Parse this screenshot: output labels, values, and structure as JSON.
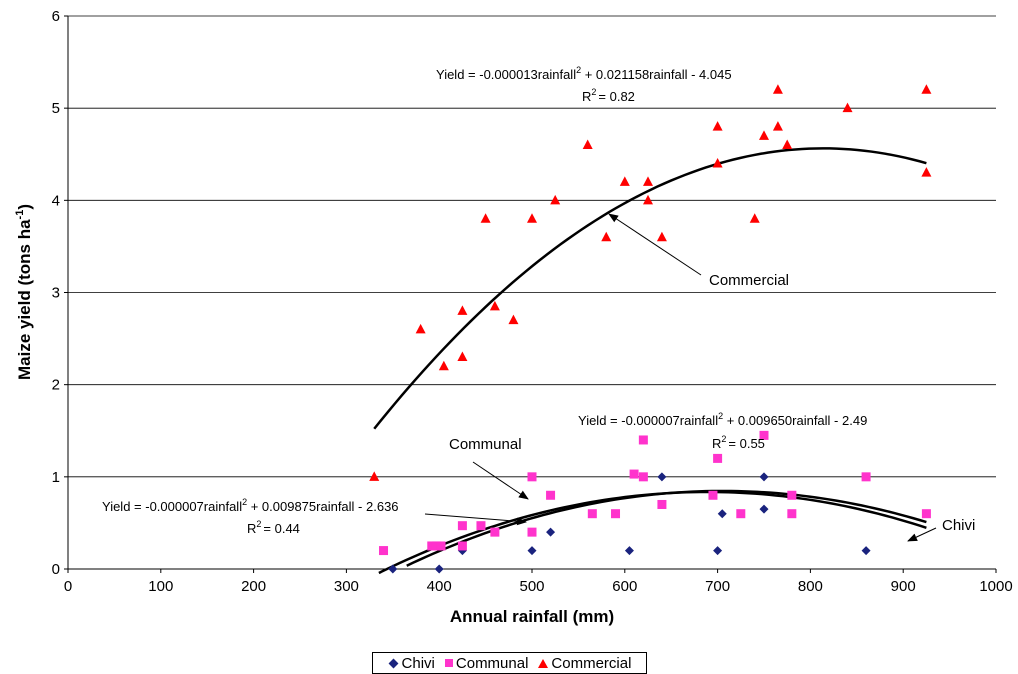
{
  "chart_data": {
    "type": "scatter",
    "xlabel": "Annual rainfall (mm)",
    "ylabel_main": "Maize yield (tons ha",
    "ylabel_sup": "-1",
    "ylabel_close": ")",
    "xlim": [
      0,
      1000
    ],
    "ylim": [
      0,
      6
    ],
    "xticks": [
      "0",
      "100",
      "200",
      "300",
      "400",
      "500",
      "600",
      "700",
      "800",
      "900",
      "1000"
    ],
    "yticks": [
      "0",
      "1",
      "2",
      "3",
      "4",
      "5",
      "6"
    ],
    "grid": "horizontal",
    "legend_position": "bottom",
    "series": [
      {
        "name": "Chivi",
        "color": "#1a237e",
        "marker": "diamond",
        "points": [
          [
            350,
            0
          ],
          [
            400,
            0
          ],
          [
            425,
            0.2
          ],
          [
            500,
            0.2
          ],
          [
            520,
            0.4
          ],
          [
            605,
            0.2
          ],
          [
            640,
            1.0
          ],
          [
            700,
            0.2
          ],
          [
            705,
            0.6
          ],
          [
            750,
            1.0
          ],
          [
            750,
            0.65
          ],
          [
            860,
            0.2
          ]
        ],
        "trend": {
          "a": -7e-06,
          "b": 0.009875,
          "c": -2.636,
          "x_range": [
            365,
            925
          ]
        }
      },
      {
        "name": "Communal",
        "color": "#ff33cc",
        "marker": "square",
        "points": [
          [
            340,
            0.2
          ],
          [
            392,
            0.25
          ],
          [
            397,
            0.25
          ],
          [
            402,
            0.25
          ],
          [
            425,
            0.25
          ],
          [
            425,
            0.47
          ],
          [
            445,
            0.47
          ],
          [
            460,
            0.4
          ],
          [
            500,
            0.4
          ],
          [
            500,
            1.0
          ],
          [
            520,
            0.8
          ],
          [
            565,
            0.6
          ],
          [
            590,
            0.6
          ],
          [
            610,
            1.03
          ],
          [
            620,
            1.0
          ],
          [
            620,
            1.4
          ],
          [
            640,
            0.7
          ],
          [
            695,
            0.8
          ],
          [
            700,
            1.2
          ],
          [
            725,
            0.6
          ],
          [
            750,
            1.45
          ],
          [
            780,
            0.6
          ],
          [
            780,
            0.8
          ],
          [
            860,
            1.0
          ],
          [
            925,
            0.6
          ]
        ],
        "trend": {
          "a": -7e-06,
          "b": 0.00965,
          "c": -2.49,
          "x_range": [
            335,
            925
          ]
        }
      },
      {
        "name": "Commercial",
        "color": "#ff0000",
        "marker": "triangle",
        "points": [
          [
            330,
            1.0
          ],
          [
            380,
            2.6
          ],
          [
            405,
            2.2
          ],
          [
            425,
            2.3
          ],
          [
            425,
            2.8
          ],
          [
            450,
            3.8
          ],
          [
            460,
            2.85
          ],
          [
            480,
            2.7
          ],
          [
            500,
            3.8
          ],
          [
            525,
            4.0
          ],
          [
            560,
            4.6
          ],
          [
            580,
            3.6
          ],
          [
            600,
            4.2
          ],
          [
            625,
            4.2
          ],
          [
            625,
            4.0
          ],
          [
            640,
            3.6
          ],
          [
            700,
            4.8
          ],
          [
            700,
            4.4
          ],
          [
            740,
            3.8
          ],
          [
            750,
            4.7
          ],
          [
            765,
            5.2
          ],
          [
            765,
            4.8
          ],
          [
            775,
            4.6
          ],
          [
            840,
            5.0
          ],
          [
            925,
            5.2
          ],
          [
            925,
            4.3
          ]
        ],
        "trend": {
          "a": -1.3e-05,
          "b": 0.021158,
          "c": -4.045,
          "x_range": [
            330,
            925
          ]
        }
      }
    ],
    "annotations": {
      "commercial_eq_a": "Yield = -0.000013rainfall",
      "commercial_eq_b": " + 0.021158rainfall - 4.045",
      "commercial_r2": "= 0.82",
      "communal_eq_a": "Yield = -0.000007rainfall",
      "communal_eq_b": " + 0.009650rainfall - 2.49",
      "communal_r2": "= 0.55",
      "chivi_eq_a": "Yield = -0.000007rainfall",
      "chivi_eq_b": " + 0.009875rainfall - 2.636",
      "chivi_r2": "= 0.44",
      "r2_prefix": "R",
      "sup2": "2",
      "label_commercial": "Commercial",
      "label_communal": "Communal",
      "label_chivi": "Chivi"
    }
  }
}
